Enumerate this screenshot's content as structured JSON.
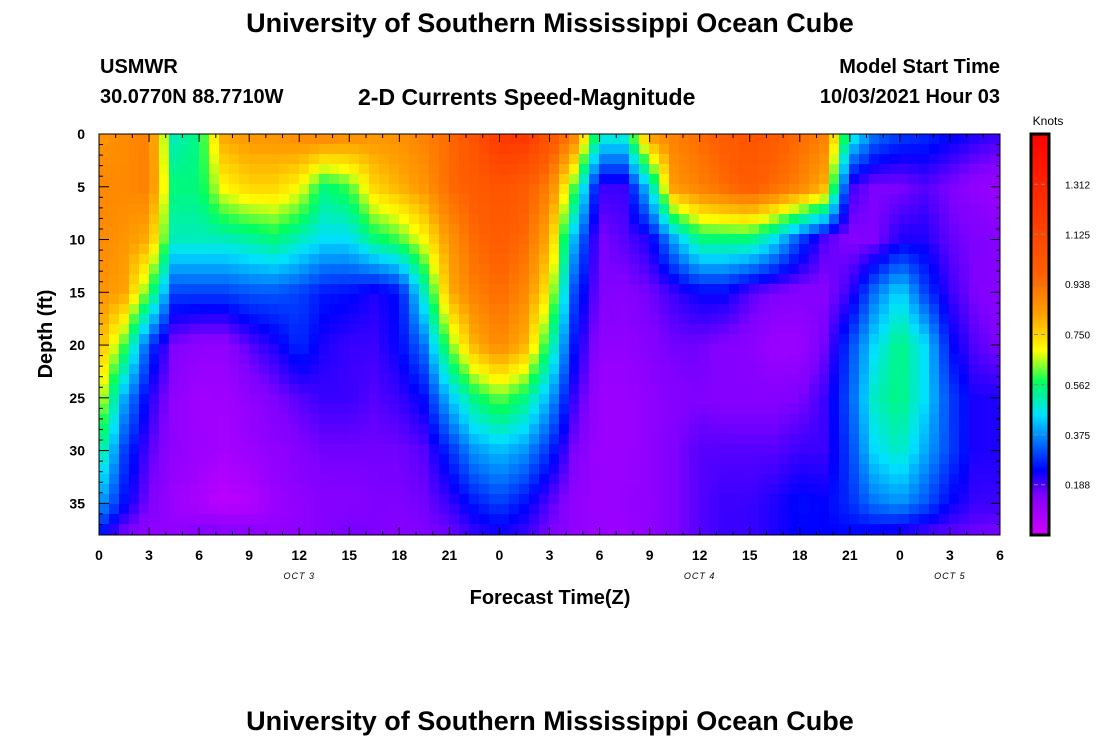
{
  "header": {
    "title": "University of Southern Mississippi Ocean Cube",
    "station": "USMWR",
    "coords": "30.0770N  88.7710W",
    "subtitle": "2-D Currents Speed-Magnitude",
    "model_start_label": "Model Start Time",
    "model_start_value": "10/03/2021 Hour 03"
  },
  "footer": {
    "title": "University of Southern Mississippi Ocean Cube"
  },
  "chart_data": {
    "type": "heatmap",
    "title": "2-D Currents Speed-Magnitude",
    "xlabel": "Forecast Time(Z)",
    "ylabel": "Depth (ft)",
    "x_tick_labels": [
      "0",
      "3",
      "6",
      "9",
      "12",
      "15",
      "18",
      "21",
      "0",
      "3",
      "6",
      "9",
      "12",
      "15",
      "18",
      "21",
      "0",
      "3",
      "6"
    ],
    "date_labels": [
      {
        "label": "OCT 3",
        "at_tick": 4
      },
      {
        "label": "OCT 4",
        "at_tick": 12
      },
      {
        "label": "OCT 5",
        "at_tick": 17
      }
    ],
    "xlim_hours": [
      0,
      54
    ],
    "ylim": [
      38,
      0
    ],
    "y_ticks": [
      0,
      5,
      10,
      15,
      20,
      25,
      30,
      35
    ],
    "colorbar": {
      "label": "Knots",
      "min": 0,
      "max": 1.5,
      "tick_values": [
        0.188,
        0.375,
        0.562,
        0.75,
        0.938,
        1.125,
        1.312
      ],
      "tick_labels": [
        "0.188",
        "0.375",
        "0.562",
        "0.750",
        "0.938",
        "1.125",
        "1.312"
      ]
    },
    "colormap": [
      "#d000ff",
      "#8000ff",
      "#0000ff",
      "#0060ff",
      "#00e0ff",
      "#00ff60",
      "#ffff00",
      "#ffa000",
      "#ff6000",
      "#ff0000"
    ],
    "hours": [
      0,
      1.5,
      3,
      4.5,
      6,
      7.5,
      9,
      10.5,
      12,
      13.5,
      15,
      16.5,
      18,
      19.5,
      21,
      22.5,
      24,
      25.5,
      27,
      28.5,
      30,
      31.5,
      33,
      34.5,
      36,
      37.5,
      39,
      40.5,
      42,
      43.5,
      45,
      46.5,
      48,
      49.5,
      51,
      52.5,
      54
    ],
    "depths": [
      0,
      5,
      10,
      15,
      20,
      25,
      30,
      35,
      38
    ],
    "speed_knots": [
      [
        0.85,
        0.87,
        0.9,
        0.5,
        0.55,
        0.82,
        0.85,
        0.85,
        0.88,
        0.9,
        0.88,
        0.85,
        0.86,
        0.9,
        0.95,
        1.05,
        1.2,
        1.2,
        1.05,
        0.9,
        0.5,
        0.5,
        0.85,
        0.9,
        0.95,
        1.0,
        1.05,
        1.0,
        0.95,
        0.9,
        0.5,
        0.35,
        0.3,
        0.28,
        0.25,
        0.22,
        0.2
      ],
      [
        0.88,
        0.88,
        0.9,
        0.55,
        0.55,
        0.7,
        0.75,
        0.75,
        0.7,
        0.55,
        0.6,
        0.75,
        0.8,
        0.85,
        0.95,
        1.0,
        1.05,
        1.0,
        0.9,
        0.6,
        0.2,
        0.2,
        0.45,
        0.85,
        0.9,
        0.95,
        1.0,
        0.95,
        0.9,
        0.8,
        0.2,
        0.15,
        0.15,
        0.18,
        0.15,
        0.12,
        0.1
      ],
      [
        0.88,
        0.85,
        0.8,
        0.5,
        0.5,
        0.5,
        0.52,
        0.55,
        0.5,
        0.45,
        0.45,
        0.55,
        0.6,
        0.7,
        0.85,
        0.95,
        1.0,
        0.95,
        0.8,
        0.4,
        0.15,
        0.18,
        0.22,
        0.4,
        0.55,
        0.55,
        0.55,
        0.45,
        0.3,
        0.18,
        0.14,
        0.15,
        0.22,
        0.22,
        0.17,
        0.15,
        0.14
      ],
      [
        0.86,
        0.82,
        0.6,
        0.3,
        0.3,
        0.3,
        0.32,
        0.32,
        0.3,
        0.26,
        0.25,
        0.22,
        0.25,
        0.5,
        0.8,
        0.9,
        0.95,
        0.88,
        0.7,
        0.3,
        0.15,
        0.14,
        0.16,
        0.2,
        0.24,
        0.24,
        0.18,
        0.15,
        0.14,
        0.14,
        0.2,
        0.35,
        0.45,
        0.3,
        0.2,
        0.15,
        0.13
      ],
      [
        0.8,
        0.6,
        0.3,
        0.15,
        0.12,
        0.12,
        0.18,
        0.22,
        0.28,
        0.22,
        0.2,
        0.2,
        0.24,
        0.35,
        0.62,
        0.8,
        0.88,
        0.8,
        0.55,
        0.25,
        0.12,
        0.12,
        0.14,
        0.16,
        0.16,
        0.14,
        0.13,
        0.1,
        0.1,
        0.16,
        0.3,
        0.45,
        0.55,
        0.45,
        0.25,
        0.18,
        0.15
      ],
      [
        0.7,
        0.4,
        0.22,
        0.12,
        0.09,
        0.09,
        0.12,
        0.15,
        0.18,
        0.2,
        0.2,
        0.18,
        0.2,
        0.25,
        0.42,
        0.55,
        0.62,
        0.55,
        0.4,
        0.2,
        0.1,
        0.1,
        0.12,
        0.14,
        0.15,
        0.14,
        0.14,
        0.14,
        0.15,
        0.2,
        0.32,
        0.5,
        0.55,
        0.45,
        0.3,
        0.22,
        0.22
      ],
      [
        0.55,
        0.3,
        0.18,
        0.12,
        0.1,
        0.08,
        0.1,
        0.12,
        0.14,
        0.16,
        0.16,
        0.16,
        0.16,
        0.18,
        0.28,
        0.38,
        0.42,
        0.38,
        0.28,
        0.15,
        0.1,
        0.1,
        0.12,
        0.15,
        0.18,
        0.18,
        0.18,
        0.18,
        0.2,
        0.2,
        0.3,
        0.45,
        0.5,
        0.4,
        0.3,
        0.22,
        0.22
      ],
      [
        0.4,
        0.25,
        0.15,
        0.1,
        0.07,
        0.04,
        0.05,
        0.1,
        0.12,
        0.14,
        0.14,
        0.15,
        0.15,
        0.16,
        0.2,
        0.26,
        0.3,
        0.25,
        0.18,
        0.12,
        0.1,
        0.11,
        0.12,
        0.15,
        0.18,
        0.2,
        0.2,
        0.22,
        0.25,
        0.24,
        0.28,
        0.35,
        0.38,
        0.32,
        0.24,
        0.2,
        0.2
      ],
      [
        0.25,
        0.15,
        0.12,
        0.12,
        0.15,
        0.15,
        0.14,
        0.12,
        0.12,
        0.14,
        0.16,
        0.15,
        0.14,
        0.15,
        0.16,
        0.2,
        0.22,
        0.2,
        0.15,
        0.12,
        0.1,
        0.1,
        0.12,
        0.15,
        0.18,
        0.2,
        0.2,
        0.22,
        0.24,
        0.24,
        0.24,
        0.22,
        0.2,
        0.18,
        0.17,
        0.16,
        0.15
      ]
    ]
  }
}
